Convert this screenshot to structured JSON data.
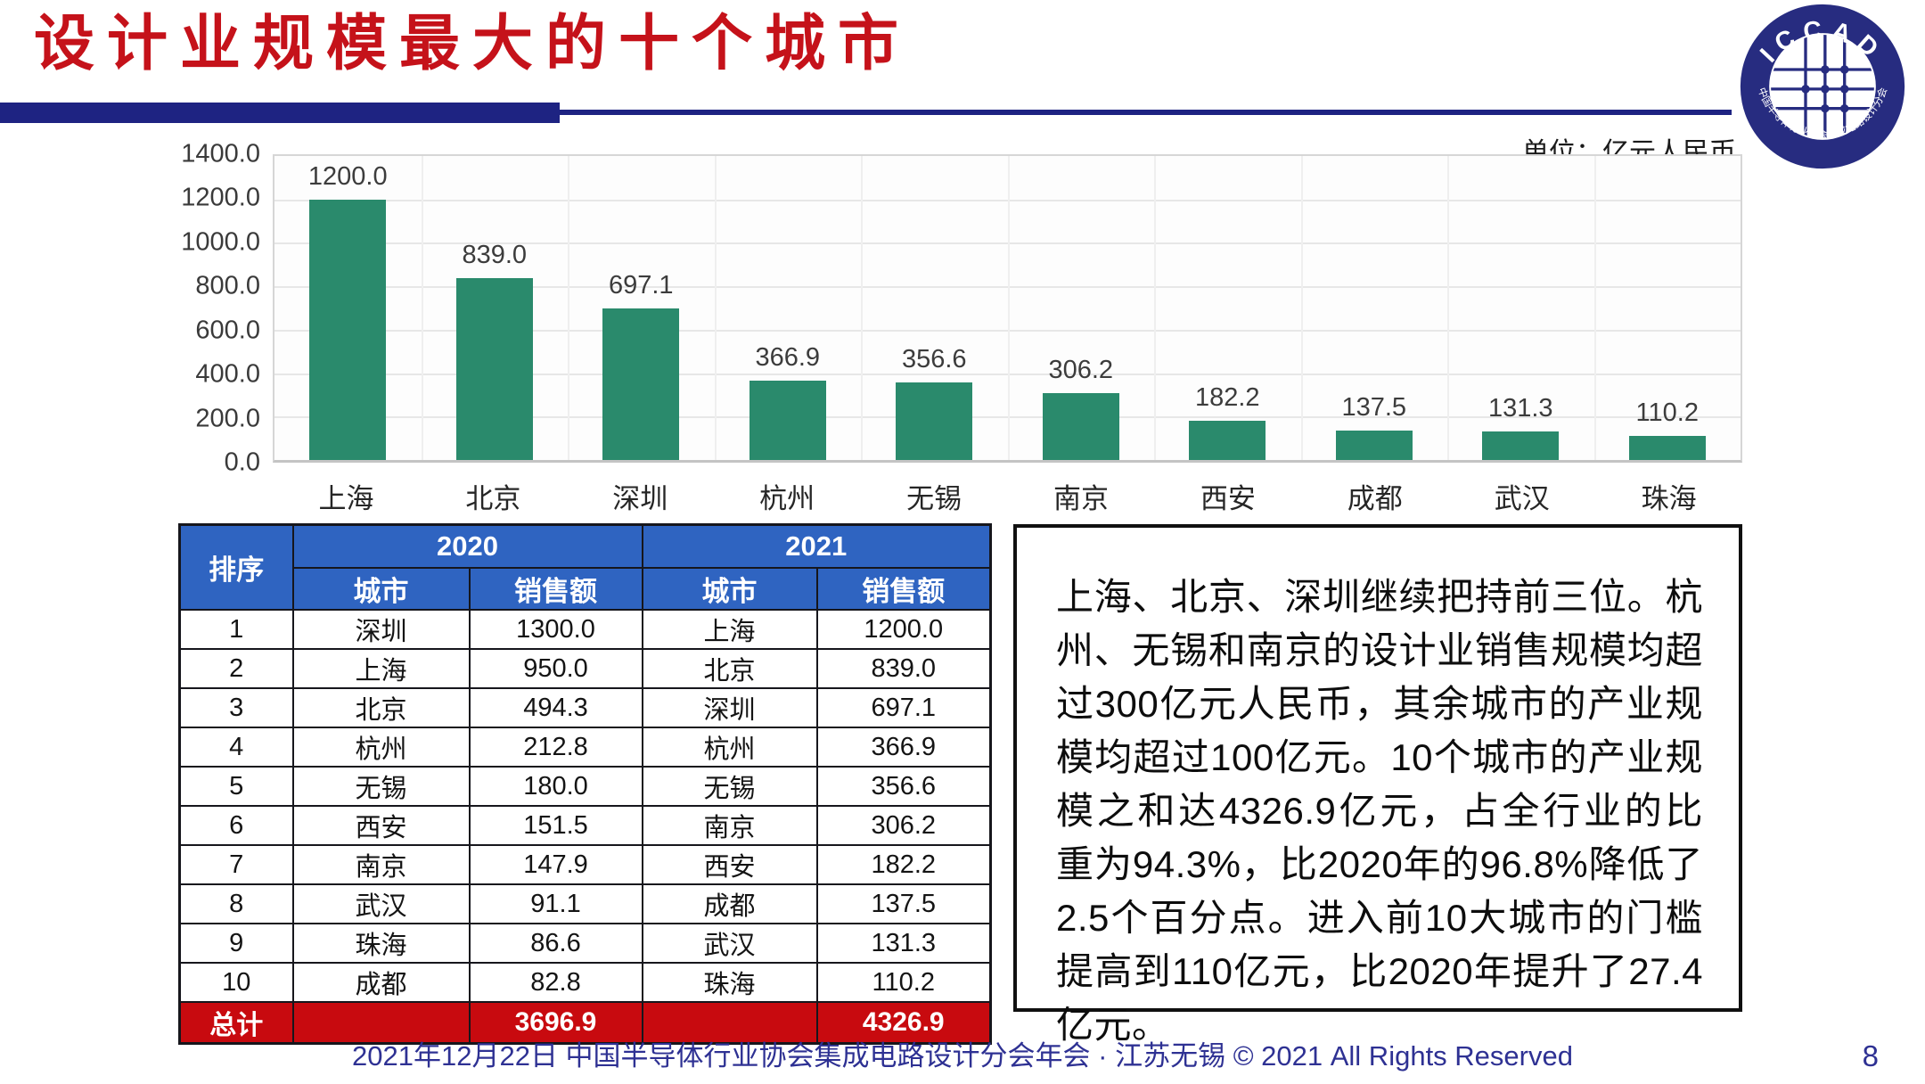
{
  "title": "设计业规模最大的十个城市",
  "unit_label": "单位：亿元人民币",
  "logo": {
    "acronym": "ICCAD",
    "org_name": "中国半导体行业协会集成电路设计分会"
  },
  "chart_data": {
    "type": "bar",
    "title": "",
    "xlabel": "",
    "ylabel": "",
    "unit": "亿元人民币",
    "categories": [
      "上海",
      "北京",
      "深圳",
      "杭州",
      "无锡",
      "南京",
      "西安",
      "成都",
      "武汉",
      "珠海"
    ],
    "values": [
      1200.0,
      839.0,
      697.1,
      366.9,
      356.6,
      306.2,
      182.2,
      137.5,
      131.3,
      110.2
    ],
    "value_labels": [
      "1200.0",
      "839.0",
      "697.1",
      "366.9",
      "356.6",
      "306.2",
      "182.2",
      "137.5",
      "131.3",
      "110.2"
    ],
    "ylim": [
      0,
      1400
    ],
    "ytick_step": 200,
    "yticks_top_to_bottom": [
      "1400.0",
      "1200.0",
      "1000.0",
      "800.0",
      "600.0",
      "400.0",
      "200.0",
      "0.0"
    ],
    "grid": true,
    "legend": "none"
  },
  "table": {
    "rank_header": "排序",
    "year_headers": [
      "2020",
      "2021"
    ],
    "sub_headers": [
      "城市",
      "销售额"
    ],
    "rows": [
      {
        "rank": "1",
        "city_2020": "深圳",
        "sales_2020": "1300.0",
        "city_2021": "上海",
        "sales_2021": "1200.0"
      },
      {
        "rank": "2",
        "city_2020": "上海",
        "sales_2020": "950.0",
        "city_2021": "北京",
        "sales_2021": "839.0"
      },
      {
        "rank": "3",
        "city_2020": "北京",
        "sales_2020": "494.3",
        "city_2021": "深圳",
        "sales_2021": "697.1"
      },
      {
        "rank": "4",
        "city_2020": "杭州",
        "sales_2020": "212.8",
        "city_2021": "杭州",
        "sales_2021": "366.9"
      },
      {
        "rank": "5",
        "city_2020": "无锡",
        "sales_2020": "180.0",
        "city_2021": "无锡",
        "sales_2021": "356.6"
      },
      {
        "rank": "6",
        "city_2020": "西安",
        "sales_2020": "151.5",
        "city_2021": "南京",
        "sales_2021": "306.2"
      },
      {
        "rank": "7",
        "city_2020": "南京",
        "sales_2020": "147.9",
        "city_2021": "西安",
        "sales_2021": "182.2"
      },
      {
        "rank": "8",
        "city_2020": "武汉",
        "sales_2020": "91.1",
        "city_2021": "成都",
        "sales_2021": "137.5"
      },
      {
        "rank": "9",
        "city_2020": "珠海",
        "sales_2020": "86.6",
        "city_2021": "武汉",
        "sales_2021": "131.3"
      },
      {
        "rank": "10",
        "city_2020": "成都",
        "sales_2020": "82.8",
        "city_2021": "珠海",
        "sales_2021": "110.2"
      }
    ],
    "total": {
      "label": "总计",
      "sales_2020": "3696.9",
      "sales_2021": "4326.9"
    }
  },
  "commentary": "上海、北京、深圳继续把持前三位。杭州、无锡和南京的设计业销售规模均超过300亿元人民币，其余城市的产业规模均超过100亿元。10个城市的产业规模之和达4326.9亿元，占全行业的比重为94.3%，比2020年的96.8%降低了2.5个百分点。进入前10大城市的门槛提高到110亿元，比2020年提升了27.4亿元。",
  "footer": {
    "text": "2021年12月22日 中国半导体行业协会集成电路设计分会年会 · 江苏无锡 © 2021 All Rights Reserved",
    "page_number": "8"
  },
  "colors": {
    "title_red": "#c5121a",
    "divider_navy": "#1e2382",
    "bar": "#2a8a6c",
    "table_header_blue": "#2f64c1",
    "total_row_red": "#c80a0f",
    "footer_blue": "#2e3193",
    "logo_navy": "#272c80"
  }
}
